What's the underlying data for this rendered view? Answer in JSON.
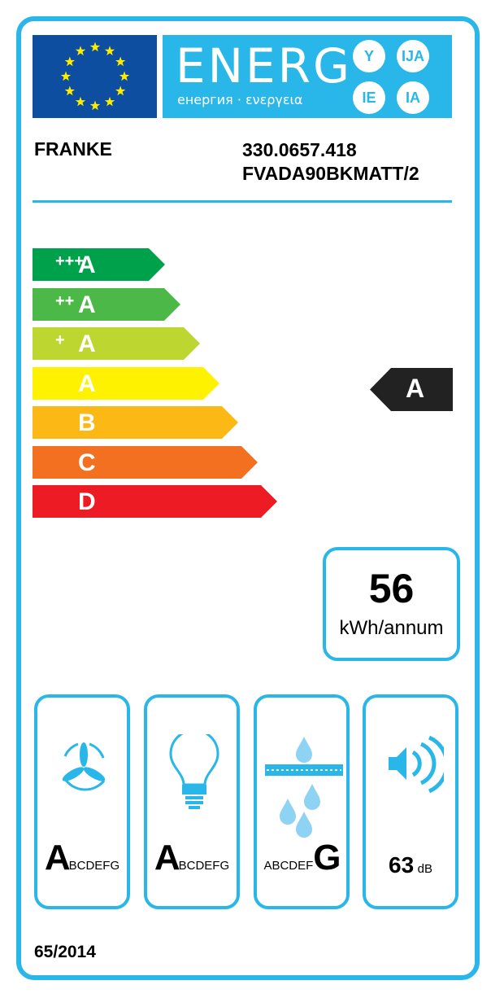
{
  "header": {
    "logo_text": "ENERG",
    "logo_subtitle": "енергия · ενεργεια",
    "language_circles": [
      "Y",
      "IJA",
      "IE",
      "IA"
    ]
  },
  "supplier": "FRANKE",
  "model": {
    "code": "330.0657.418",
    "name": "FVADA90BKMATT/2"
  },
  "scale": [
    {
      "label": "A",
      "plus": "+++",
      "color": "#00a14b"
    },
    {
      "label": "A",
      "plus": "++",
      "color": "#4cb848"
    },
    {
      "label": "A",
      "plus": "+",
      "color": "#bed630"
    },
    {
      "label": "A",
      "plus": "",
      "color": "#fff200"
    },
    {
      "label": "B",
      "plus": "",
      "color": "#fcb814"
    },
    {
      "label": "C",
      "plus": "",
      "color": "#f37021"
    },
    {
      "label": "D",
      "plus": "",
      "color": "#ed1c24"
    }
  ],
  "energy_class": "A",
  "consumption": {
    "value": "56",
    "unit": "kWh/annum"
  },
  "features": [
    {
      "icon": "fan-icon",
      "big": "A",
      "rest": "BCDEFG"
    },
    {
      "icon": "light-bulb-icon",
      "big": "A",
      "rest": "BCDEFG"
    },
    {
      "icon": "grease-filter-icon",
      "pre": "ABCDEF",
      "big": "G"
    },
    {
      "icon": "speaker-icon",
      "value": "63",
      "unit": "dB"
    }
  ],
  "regulation": "65/2014",
  "colors": {
    "accent": "#29b6e8",
    "flag": "#0d4ea1",
    "star": "#ffed00"
  }
}
